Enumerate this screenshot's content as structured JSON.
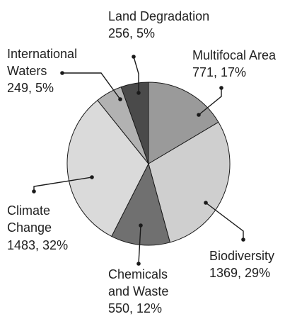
{
  "chart_data": {
    "type": "pie",
    "title": "",
    "slices": [
      {
        "key": "multifocal",
        "name": "Multifocal Area",
        "label_lines": [
          "Multifocal Area"
        ],
        "value": 771,
        "value_text": "771, 17%",
        "color": "#9a9a9a"
      },
      {
        "key": "biodiversity",
        "name": "Biodiversity",
        "label_lines": [
          "Biodiversity"
        ],
        "value": 1369,
        "value_text": "1369, 29%",
        "color": "#cfcfcf"
      },
      {
        "key": "chemicals",
        "name": "Chemicals and Waste",
        "label_lines": [
          "Chemicals",
          "and Waste"
        ],
        "value": 550,
        "value_text": "550, 12%",
        "color": "#707070"
      },
      {
        "key": "climate",
        "name": "Climate Change",
        "label_lines": [
          "Climate",
          "Change"
        ],
        "value": 1483,
        "value_text": "1483, 32%",
        "color": "#dadada"
      },
      {
        "key": "international",
        "name": "International Waters",
        "label_lines": [
          "International",
          "Waters"
        ],
        "value": 249,
        "value_text": "249, 5%",
        "color": "#b2b2b2"
      },
      {
        "key": "land",
        "name": "Land Degradation",
        "label_lines": [
          "Land Degradation"
        ],
        "value": 256,
        "value_text": "256, 5%",
        "color": "#4a4a4a"
      }
    ]
  }
}
